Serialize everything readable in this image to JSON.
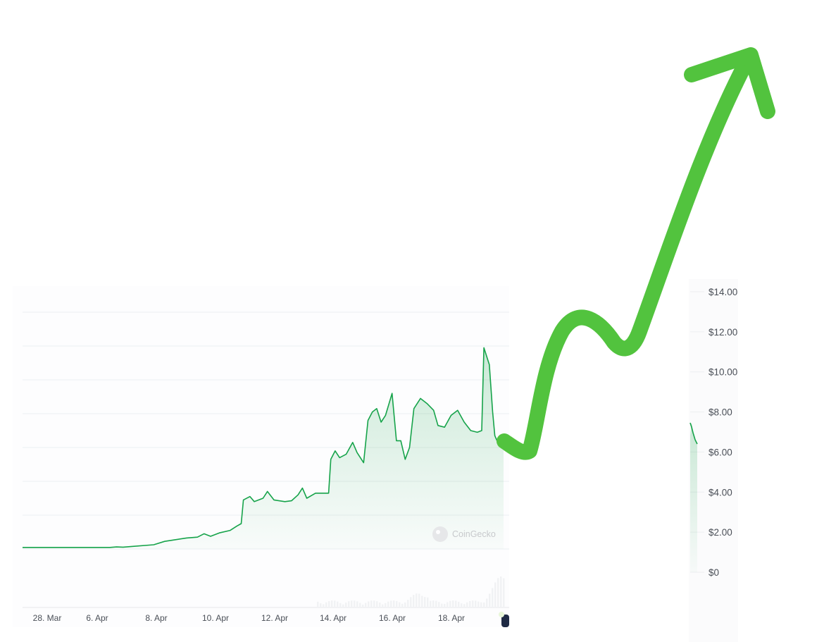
{
  "chart_data": {
    "type": "area",
    "title": "",
    "xlabel": "",
    "ylabel": "",
    "x_ticks": [
      "28. Mar",
      "6. Apr",
      "8. Apr",
      "10. Apr",
      "12. Apr",
      "14. Apr",
      "16. Apr",
      "18. Apr"
    ],
    "y_ticks": [
      "$14.00",
      "$12.00",
      "$10.00",
      "$8.00",
      "$6.00",
      "$4.00",
      "$2.00",
      "$0"
    ],
    "ylim": [
      0,
      14
    ],
    "grid": true,
    "watermark": "CoinGecko",
    "series": [
      {
        "values": [
          [
            0,
            0.09
          ],
          [
            1,
            0.09
          ],
          [
            2,
            0.09
          ],
          [
            3,
            0.09
          ],
          [
            4,
            0.09
          ],
          [
            4.3,
            0.12
          ],
          [
            4.6,
            0.11
          ],
          [
            5,
            0.15
          ],
          [
            6,
            0.25
          ],
          [
            6.5,
            0.45
          ],
          [
            7,
            0.55
          ],
          [
            7.5,
            0.65
          ],
          [
            8,
            0.7
          ],
          [
            8.3,
            0.9
          ],
          [
            8.6,
            0.75
          ],
          [
            9,
            0.95
          ],
          [
            9.5,
            1.1
          ],
          [
            9.8,
            1.35
          ],
          [
            10,
            1.5
          ],
          [
            10.1,
            2.9
          ],
          [
            10.4,
            3.1
          ],
          [
            10.6,
            2.8
          ],
          [
            11,
            3.0
          ],
          [
            11.2,
            3.4
          ],
          [
            11.5,
            2.9
          ],
          [
            12,
            2.8
          ],
          [
            12.3,
            2.85
          ],
          [
            12.6,
            3.2
          ],
          [
            12.8,
            3.6
          ],
          [
            13,
            3.0
          ],
          [
            13.4,
            3.3
          ],
          [
            13.7,
            3.3
          ],
          [
            14,
            3.3
          ],
          [
            14.1,
            5.3
          ],
          [
            14.3,
            5.8
          ],
          [
            14.5,
            5.4
          ],
          [
            14.8,
            5.6
          ],
          [
            15.1,
            6.3
          ],
          [
            15.3,
            5.7
          ],
          [
            15.6,
            5.1
          ],
          [
            15.8,
            7.6
          ],
          [
            16,
            8.1
          ],
          [
            16.2,
            8.3
          ],
          [
            16.4,
            7.5
          ],
          [
            16.6,
            7.9
          ],
          [
            16.9,
            9.2
          ],
          [
            17.1,
            6.4
          ],
          [
            17.3,
            6.4
          ],
          [
            17.5,
            5.3
          ],
          [
            17.7,
            6.0
          ],
          [
            17.9,
            8.3
          ],
          [
            18.2,
            8.9
          ],
          [
            18.5,
            8.6
          ],
          [
            18.8,
            8.2
          ],
          [
            19,
            7.3
          ],
          [
            19.3,
            7.2
          ],
          [
            19.6,
            7.9
          ],
          [
            19.9,
            8.2
          ],
          [
            20.2,
            7.5
          ],
          [
            20.5,
            7.0
          ],
          [
            20.8,
            6.9
          ],
          [
            21,
            7.0
          ],
          [
            21.1,
            11.9
          ],
          [
            21.25,
            11.3
          ],
          [
            21.35,
            10.9
          ],
          [
            21.5,
            8.1
          ],
          [
            21.6,
            6.7
          ],
          [
            21.7,
            6.4
          ],
          [
            21.8,
            6.5
          ],
          [
            22,
            6.3
          ]
        ]
      }
    ]
  },
  "annotation": {
    "type": "hand-drawn-arrow",
    "direction": "up-right",
    "color": "#52c33e"
  }
}
